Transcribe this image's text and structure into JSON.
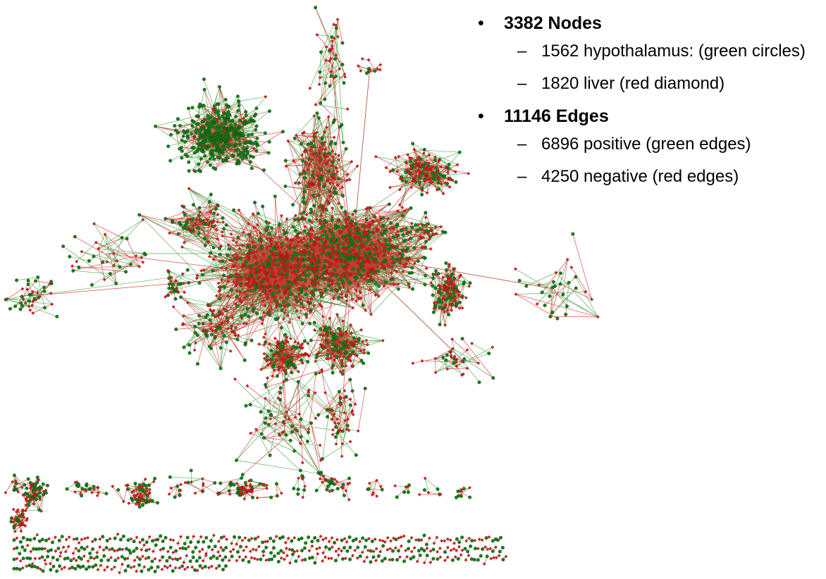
{
  "bullets": [
    {
      "title": "3382 Nodes",
      "items": [
        "1562 hypothalamus: (green circles)",
        "1820 liver (red diamond)"
      ]
    },
    {
      "title": "11146 Edges",
      "items": [
        "6896 positive (green edges)",
        "4250 negative (red edges)"
      ]
    }
  ]
}
